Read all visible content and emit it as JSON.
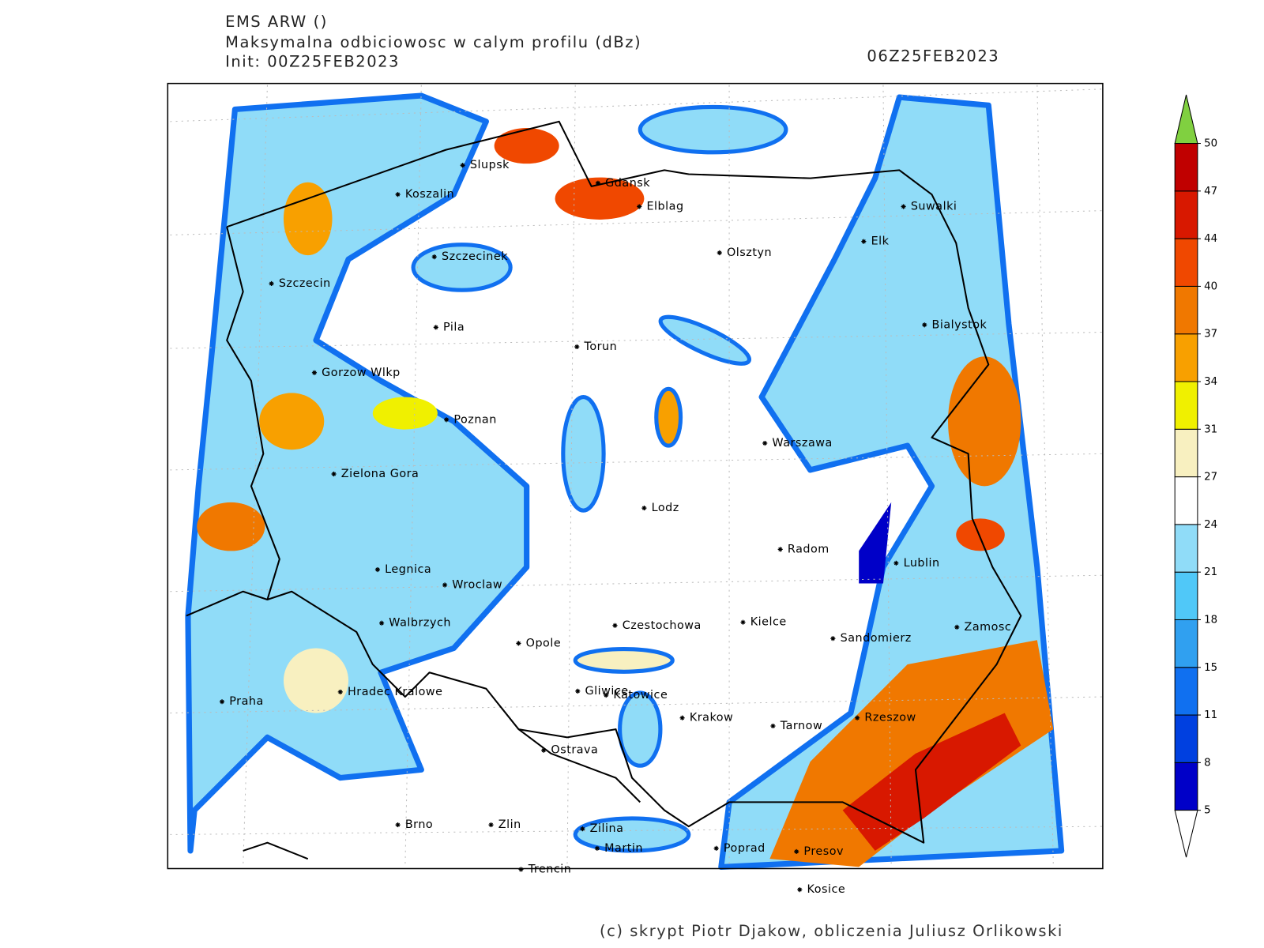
{
  "header": {
    "model": "EMS ARW ()",
    "field": "Maksymalna odbiciowosc w calym profilu (dBz)",
    "init": "Init: 00Z25FEB2023",
    "valid": "06Z25FEB2023"
  },
  "cities": [
    "Slupsk",
    "Gdansk",
    "Koszalin",
    "Elblag",
    "Suwalki",
    "Olsztyn",
    "Elk",
    "Szczecinek",
    "Szczecin",
    "Bialystok",
    "Pila",
    "Torun",
    "Gorzow Wlkp",
    "Poznan",
    "Warszawa",
    "Zielona Gora",
    "Lodz",
    "Radom",
    "Lublin",
    "Legnica",
    "Wroclaw",
    "Czestochowa",
    "Kielce",
    "Zamosc",
    "Walbrzych",
    "Opole",
    "Sandomierz",
    "Praha",
    "Hradec Kralowe",
    "Gliwice",
    "Katowice",
    "Krakow",
    "Tarnow",
    "Rzeszow",
    "Ostrava",
    "Brno",
    "Zlin",
    "Zilina",
    "Martin",
    "Poprad",
    "Presov",
    "Trencin",
    "Kosice"
  ],
  "colorbar": {
    "levels": [
      5,
      8,
      11,
      15,
      18,
      21,
      24,
      27,
      31,
      34,
      37,
      40,
      44,
      47,
      50
    ],
    "colors": [
      "#0000c8",
      "#0040e0",
      "#1070f0",
      "#30a0f0",
      "#50c8f8",
      "#90dcf8",
      "#ffffff",
      "#f8f0c0",
      "#f0f000",
      "#f8a000",
      "#f07800",
      "#f04800",
      "#d81800",
      "#c00000"
    ],
    "under_color": "#ffffff",
    "over_color": "#80d040"
  },
  "footer": {
    "credit": "(c) skrypt Piotr Djakow, obliczenia Juliusz Orlikowski"
  }
}
